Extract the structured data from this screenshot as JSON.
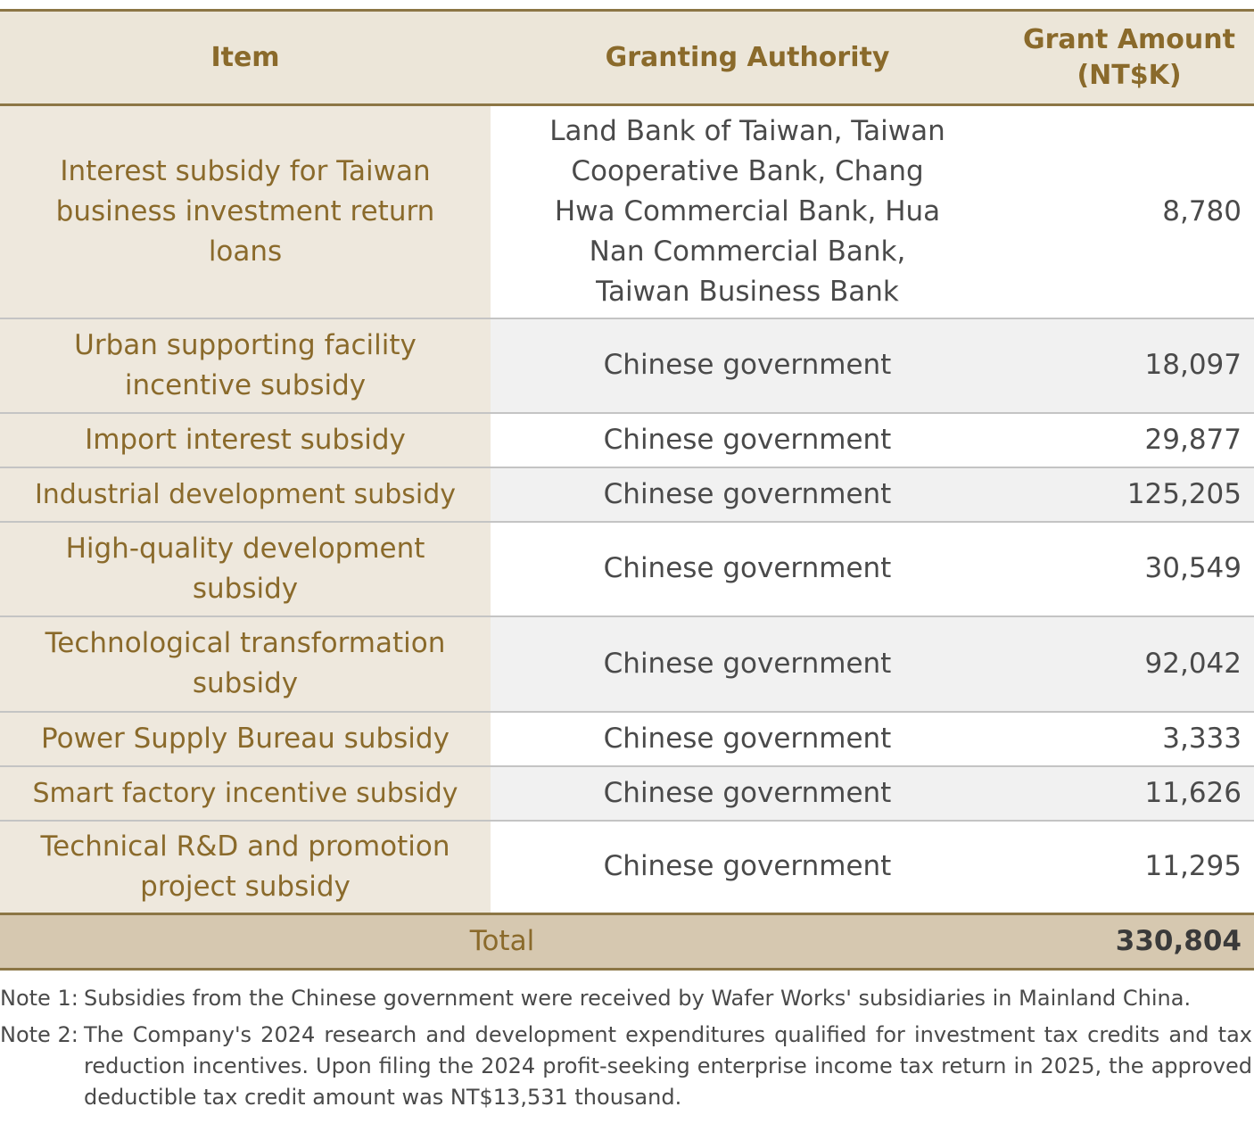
{
  "table": {
    "headers": {
      "item": "Item",
      "authority": "Granting Authority",
      "amount_line1": "Grant Amount",
      "amount_line2": "(NT$K)"
    },
    "rows": [
      {
        "item": "Interest subsidy for Taiwan business investment return loans",
        "authority": "Land Bank of Taiwan, Taiwan Cooperative Bank, Chang Hwa Commercial Bank, Hua Nan Commercial Bank, Taiwan Business Bank",
        "amount": "8,780"
      },
      {
        "item": "Urban supporting facility incentive subsidy",
        "authority": "Chinese government",
        "amount": "18,097"
      },
      {
        "item": "Import interest subsidy",
        "authority": "Chinese government",
        "amount": "29,877"
      },
      {
        "item": "Industrial development subsidy",
        "authority": "Chinese government",
        "amount": "125,205"
      },
      {
        "item": "High-quality development subsidy",
        "authority": "Chinese government",
        "amount": "30,549"
      },
      {
        "item": "Technological transformation subsidy",
        "authority": "Chinese government",
        "amount": "92,042"
      },
      {
        "item": "Power Supply Bureau subsidy",
        "authority": "Chinese government",
        "amount": "3,333"
      },
      {
        "item": "Smart factory incentive subsidy",
        "authority": "Chinese government",
        "amount": "11,626"
      },
      {
        "item": "Technical R&D and promotion project subsidy",
        "authority": "Chinese government",
        "amount": "11,295"
      }
    ],
    "total": {
      "label": "Total",
      "amount": "330,804"
    }
  },
  "notes": [
    {
      "label": "Note 1:",
      "text": "Subsidies from the Chinese government were received by Wafer Works' subsidiaries in Mainland China."
    },
    {
      "label": "Note 2:",
      "text": "The Company's 2024 research and development expenditures qualified for investment tax credits and tax reduction incentives. Upon filing the 2024 profit-seeking enterprise income tax return in 2025, the approved deductible tax credit amount was NT$13,531 thousand."
    }
  ]
}
